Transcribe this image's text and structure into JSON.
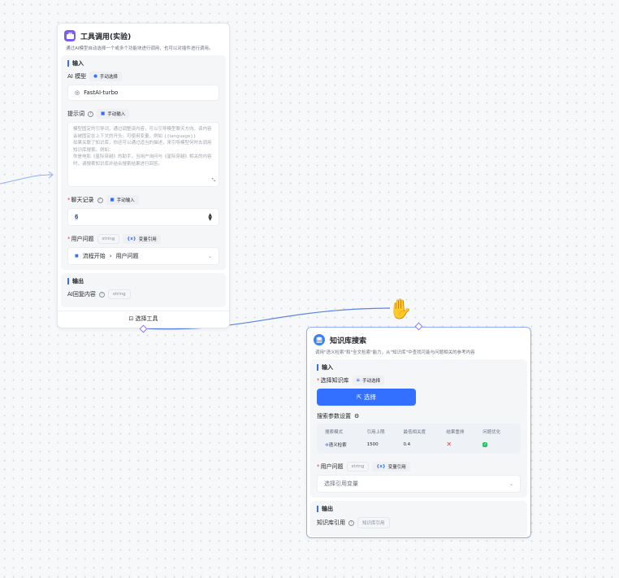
{
  "tool_node": {
    "title": "工具调用(实验)",
    "description": "通过AI模型自动选择一个或多个功能块进行调用，也可以对插件进行调用。",
    "input_section": "输入",
    "ai_model_label": "AI 模型",
    "ai_model_mode": "手动选择",
    "ai_model_value": "FastAI-turbo",
    "prompt_label": "提示词",
    "prompt_mode": "手动输入",
    "prompt_placeholder": "模型固定的引导词，通过调整该内容，可以引导模型聊天方向。该内容会被固定在上下文的开头。可使用变量，例如 {{language}}\n如果关联了知识库，你还可以通过适当的描述，来引导模型何时去调用知识库搜索。例如：\n你是电影《星际穿越》的助手，当用户询问与《星际穿越》相关的内容时，请搜索知识库并结合搜索结果进行回答。",
    "history_label": "聊天记录",
    "history_mode": "手动输入",
    "history_value": "6",
    "question_label": "用户问题",
    "question_type": "string",
    "question_mode": "变量引用",
    "question_ref_source": "流程开始",
    "question_ref_field": "用户问题",
    "output_section": "输出",
    "output_label": "AI回复内容",
    "output_type": "string",
    "footer_button": "选择工具"
  },
  "kb_node": {
    "title": "知识库搜索",
    "description": "调用\"语义检索\"和\"全文检索\"能力，从\"知识库\"中查找可能与问题相关的参考内容",
    "input_section": "输入",
    "kb_label": "选择知识库",
    "kb_mode": "手动选择",
    "select_button": "选择",
    "params_label": "搜索参数设置",
    "table": {
      "headers": [
        "搜索模式",
        "引用上限",
        "最低相关度",
        "结果重排",
        "问题优化"
      ],
      "row": {
        "mode": "语义检索",
        "limit": "1500",
        "similarity": "0.4",
        "rerank": false,
        "optimize": true
      }
    },
    "question_label": "用户问题",
    "question_type": "string",
    "question_mode": "变量引用",
    "question_placeholder": "选择引用变量",
    "output_section": "输出",
    "output_label": "知识库引用",
    "output_type": "知识库引用"
  },
  "colors": {
    "accent": "#3370ff",
    "handle": "#8a7bf0",
    "edge": "#5b83e8",
    "error": "#e53e3e",
    "success": "#22c55e"
  }
}
